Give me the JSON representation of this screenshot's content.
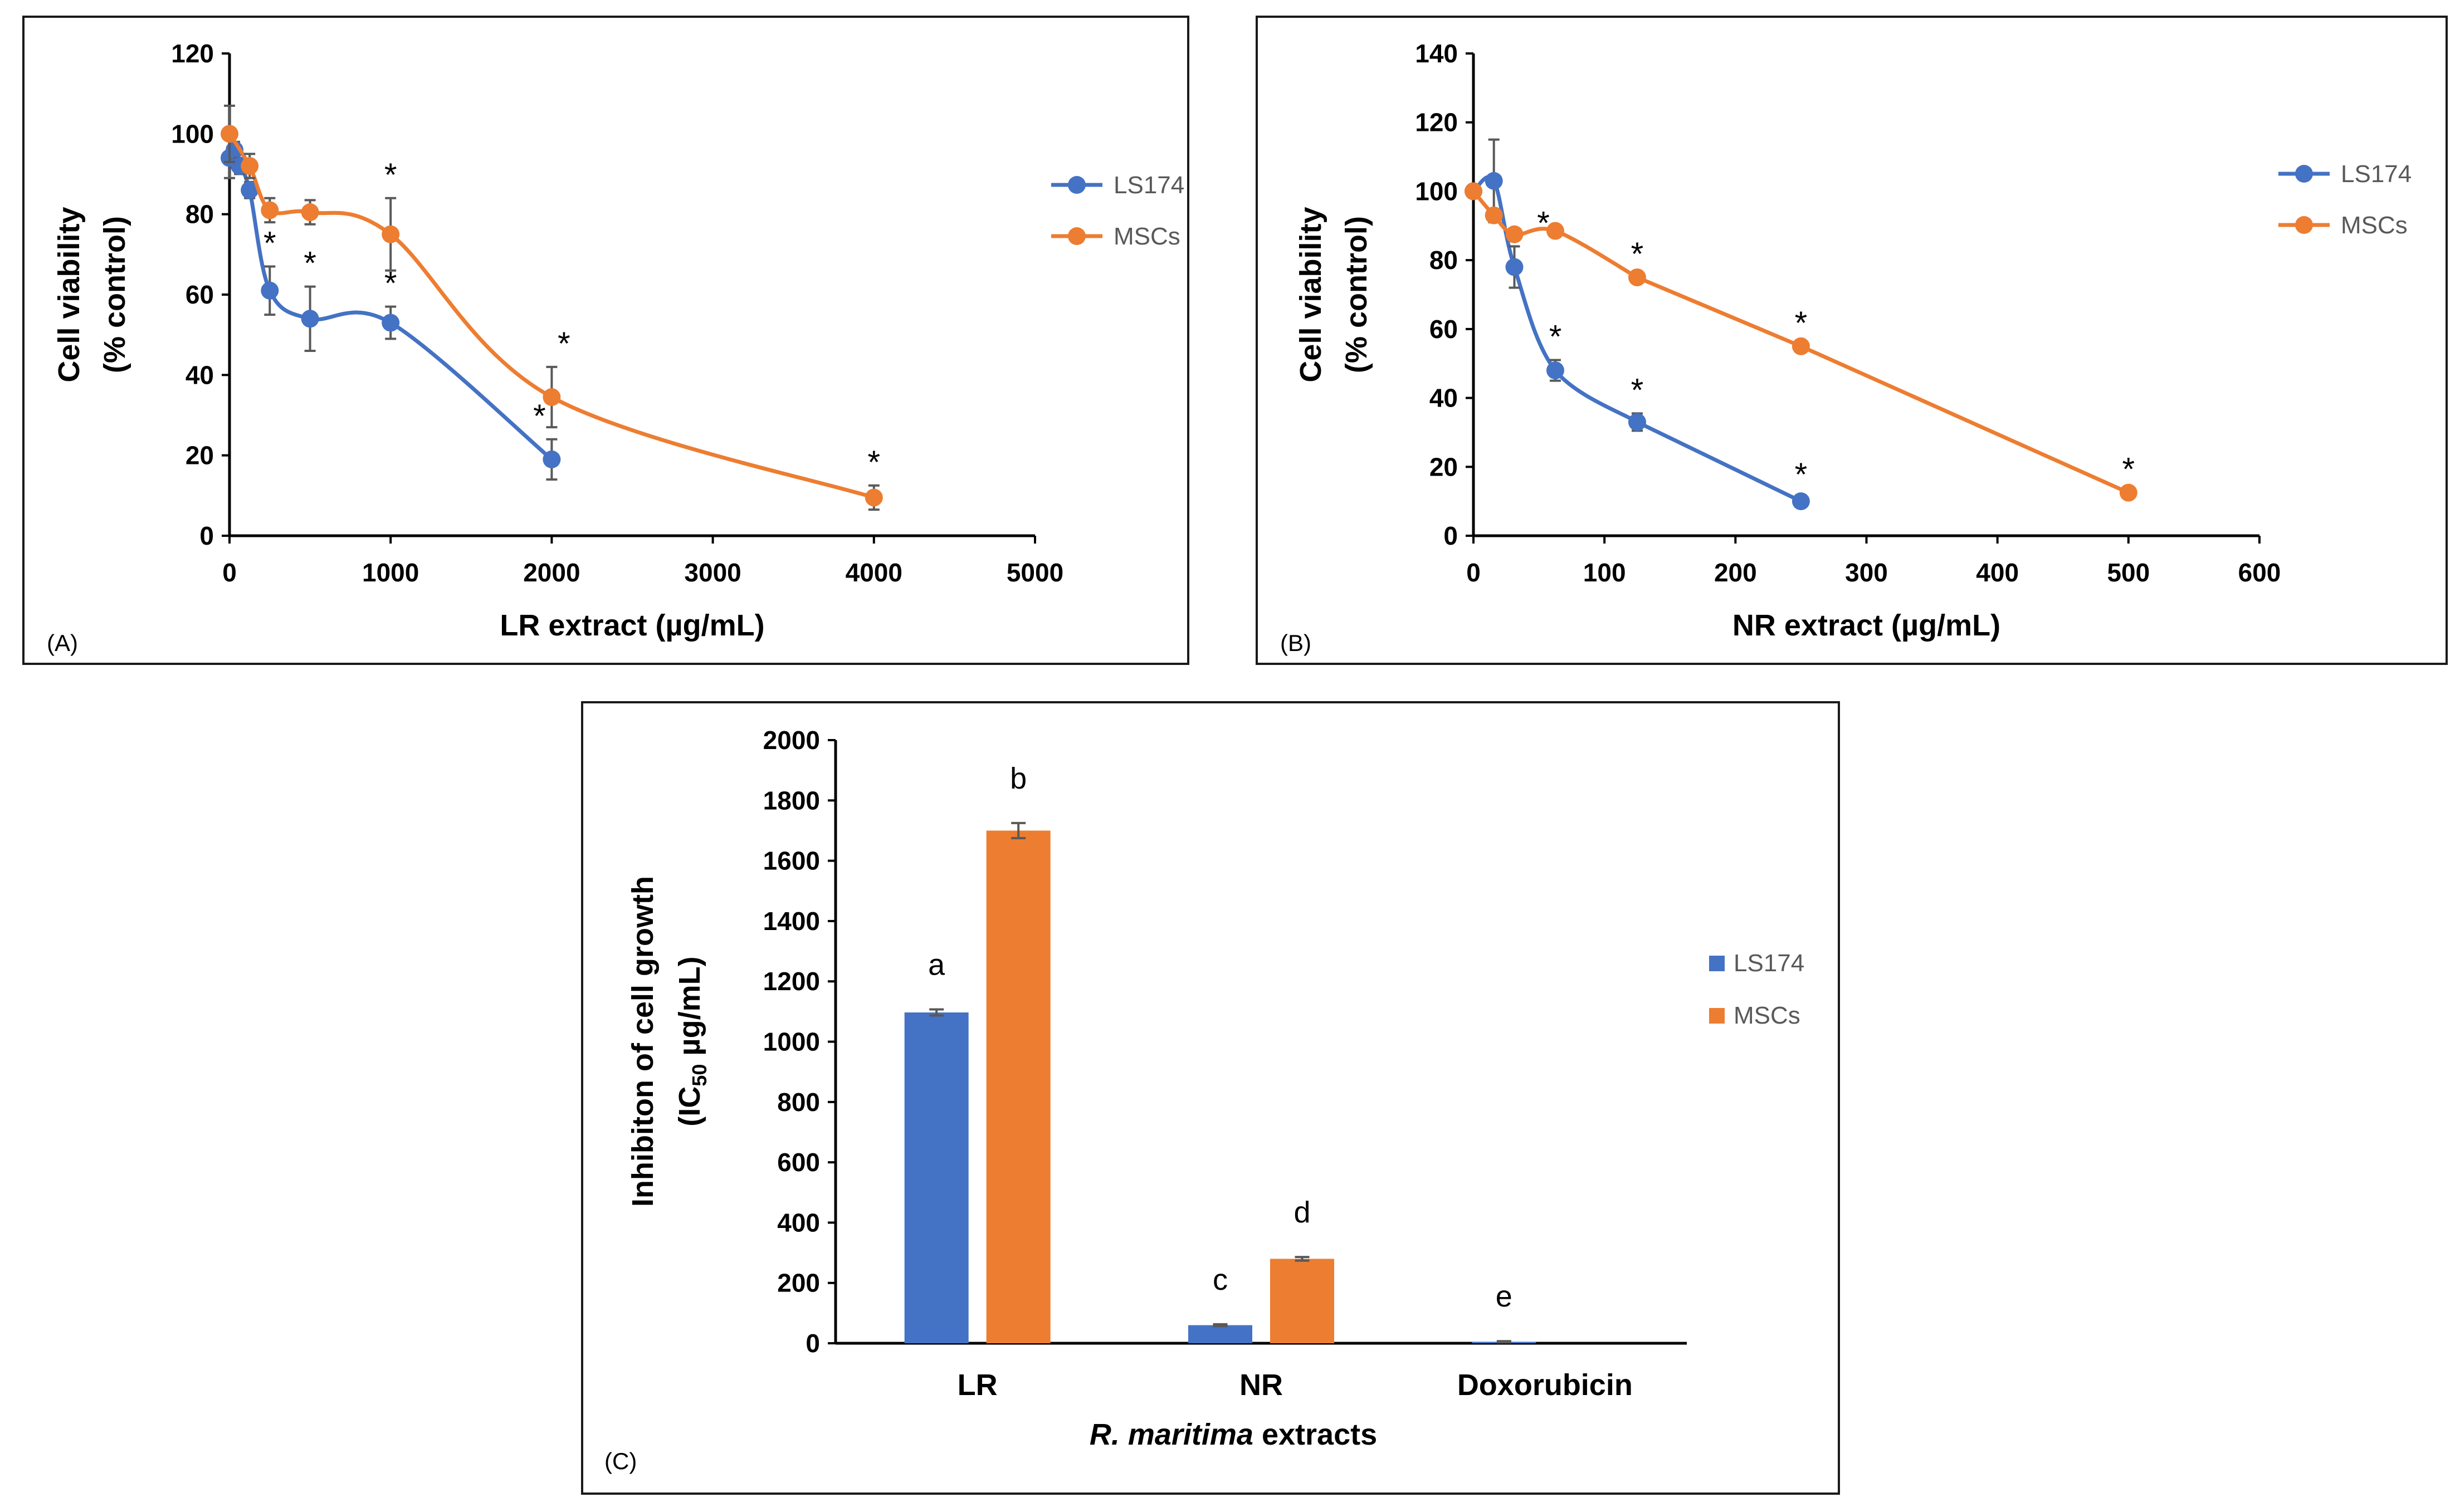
{
  "colors": {
    "ls174": "#4472c4",
    "mscs": "#ed7d31"
  },
  "chart_data": [
    {
      "id": "A",
      "type": "line",
      "panel_label": "(A)",
      "xlabel": "LR extract (µg/mL)",
      "ylabel": [
        "Cell viability",
        "(% control)"
      ],
      "xlim": [
        0,
        5000
      ],
      "ylim": [
        0,
        120
      ],
      "xticks": [
        0,
        1000,
        2000,
        3000,
        4000,
        5000
      ],
      "yticks": [
        0,
        20,
        40,
        60,
        80,
        100,
        120
      ],
      "legend": [
        "LS174",
        "MSCs"
      ],
      "series": [
        {
          "name": "LS174",
          "color": "#4472c4",
          "points": [
            {
              "x": 0,
              "y": 94,
              "err": 5,
              "star": false
            },
            {
              "x": 31.25,
              "y": 96,
              "err": 2,
              "star": false
            },
            {
              "x": 62.5,
              "y": 92,
              "err": 2,
              "star": false
            },
            {
              "x": 125,
              "y": 86,
              "err": 2,
              "star": false
            },
            {
              "x": 250,
              "y": 61,
              "err": 6,
              "star": true
            },
            {
              "x": 500,
              "y": 54,
              "err": 8,
              "star": true
            },
            {
              "x": 1000,
              "y": 53,
              "err": 4,
              "star": true
            },
            {
              "x": 2000,
              "y": 19,
              "err": 5,
              "star": true
            }
          ]
        },
        {
          "name": "MSCs",
          "color": "#ed7d31",
          "points": [
            {
              "x": 0,
              "y": 100,
              "err": 7,
              "star": false
            },
            {
              "x": 125,
              "y": 92,
              "err": 3,
              "star": false
            },
            {
              "x": 250,
              "y": 81,
              "err": 3,
              "star": false
            },
            {
              "x": 500,
              "y": 80.5,
              "err": 3,
              "star": false
            },
            {
              "x": 1000,
              "y": 75,
              "err": 9,
              "star": true
            },
            {
              "x": 2000,
              "y": 34.5,
              "err": 7.5,
              "star": true
            },
            {
              "x": 4000,
              "y": 9.5,
              "err": 3,
              "star": true
            }
          ]
        }
      ]
    },
    {
      "id": "B",
      "type": "line",
      "panel_label": "(B)",
      "xlabel": "NR extract (µg/mL)",
      "ylabel": [
        "Cell viability",
        "(% control)"
      ],
      "xlim": [
        0,
        600
      ],
      "ylim": [
        0,
        140
      ],
      "xticks": [
        0,
        100,
        200,
        300,
        400,
        500,
        600
      ],
      "yticks": [
        0,
        20,
        40,
        60,
        80,
        100,
        120,
        140
      ],
      "legend": [
        "LS174",
        "MSCs"
      ],
      "series": [
        {
          "name": "LS174",
          "color": "#4472c4",
          "points": [
            {
              "x": 0,
              "y": 100,
              "err": 0,
              "star": false
            },
            {
              "x": 15.6,
              "y": 103,
              "err": 12,
              "star": false
            },
            {
              "x": 31.25,
              "y": 78,
              "err": 6,
              "star": true
            },
            {
              "x": 62.5,
              "y": 48,
              "err": 3,
              "star": true
            },
            {
              "x": 125,
              "y": 33,
              "err": 2.5,
              "star": true
            },
            {
              "x": 250,
              "y": 10,
              "err": 1,
              "star": true
            }
          ]
        },
        {
          "name": "MSCs",
          "color": "#ed7d31",
          "points": [
            {
              "x": 0,
              "y": 100,
              "err": 0,
              "star": false
            },
            {
              "x": 15.6,
              "y": 93,
              "err": 0,
              "star": false
            },
            {
              "x": 31.25,
              "y": 87.5,
              "err": 0,
              "star": false
            },
            {
              "x": 62.5,
              "y": 88.5,
              "err": 0,
              "star": false
            },
            {
              "x": 125,
              "y": 75,
              "err": 0,
              "star": true
            },
            {
              "x": 250,
              "y": 55,
              "err": 0,
              "star": true
            },
            {
              "x": 500,
              "y": 12.5,
              "err": 0,
              "star": true
            }
          ]
        }
      ]
    },
    {
      "id": "C",
      "type": "bar",
      "panel_label": "(C)",
      "xlabel_italic": "R. maritima",
      "xlabel_rest": " extracts",
      "ylabel_line1": "Inhibiton of cell growth",
      "ylabel_line2_pre": "(IC",
      "ylabel_line2_sub": "50",
      "ylabel_line2_post": "  µg/mL)",
      "ylim": [
        0,
        2000
      ],
      "yticks": [
        0,
        200,
        400,
        600,
        800,
        1000,
        1200,
        1400,
        1600,
        1800,
        2000
      ],
      "categories": [
        "LR",
        "NR",
        "Doxorubicin"
      ],
      "legend": [
        "LS174",
        "MSCs"
      ],
      "series": [
        {
          "name": "LS174",
          "color": "#4472c4",
          "values": [
            1097,
            60,
            5
          ],
          "errors": [
            10,
            3,
            2
          ],
          "letters": [
            "a",
            "c",
            "e"
          ]
        },
        {
          "name": "MSCs",
          "color": "#ed7d31",
          "values": [
            1700,
            280,
            0
          ],
          "errors": [
            25,
            6,
            0
          ],
          "letters": [
            "b",
            "d",
            ""
          ]
        }
      ]
    }
  ]
}
